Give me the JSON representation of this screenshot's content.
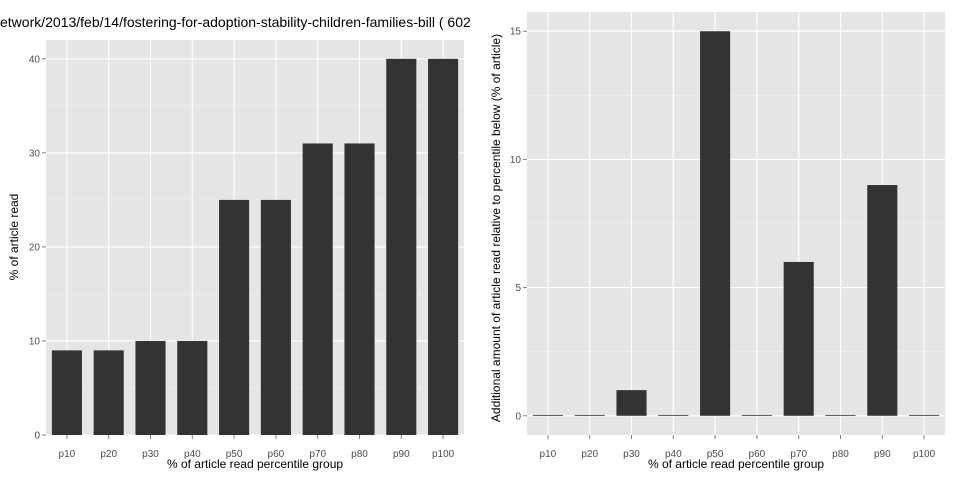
{
  "page_title": "etwork/2013/feb/14/fostering-for-adoption-stability-children-families-bill ( 602",
  "chart_data": [
    {
      "type": "bar",
      "title": "etwork/2013/feb/14/fostering-for-adoption-stability-children-families-bill ( 602",
      "categories": [
        "p10",
        "p20",
        "p30",
        "p40",
        "p50",
        "p60",
        "p70",
        "p80",
        "p90",
        "p100"
      ],
      "values": [
        9,
        9,
        10,
        10,
        25,
        25,
        31,
        31,
        40,
        40
      ],
      "xlabel": "% of article read percentile group",
      "ylabel": "% of article read",
      "ylim": [
        0,
        42
      ],
      "yticks": [
        0,
        10,
        20,
        30,
        40
      ],
      "grid": true,
      "bar_color": "#333333",
      "panel_color": "#e5e5e5"
    },
    {
      "type": "bar",
      "categories": [
        "p10",
        "p20",
        "p30",
        "p40",
        "p50",
        "p60",
        "p70",
        "p80",
        "p90",
        "p100"
      ],
      "values": [
        0,
        0,
        1,
        0,
        15,
        0,
        6,
        0,
        9,
        0
      ],
      "xlabel": "% of article read percentile group",
      "ylabel": "Additional amount of article read relative to percentile below (% of article)",
      "ylim": [
        -0.75,
        15.75
      ],
      "yticks": [
        0,
        5,
        10,
        15
      ],
      "grid": true,
      "bar_color": "#333333",
      "panel_color": "#e5e5e5"
    }
  ]
}
